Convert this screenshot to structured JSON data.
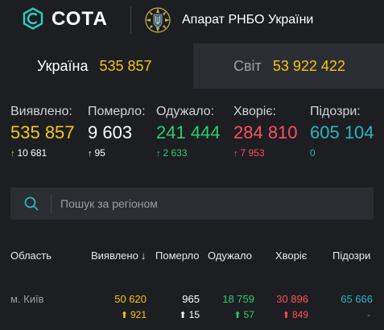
{
  "header": {
    "logo_text": "СОТА",
    "org_name": "Апарат РНБО України",
    "logo_icon": "sota-hex-logo-icon",
    "emblem_icon": "ukraine-coat-of-arms-icon"
  },
  "tabs": [
    {
      "label": "Україна",
      "value": "535 857",
      "active": true
    },
    {
      "label": "Світ",
      "value": "53 922 422",
      "active": false
    }
  ],
  "stats": [
    {
      "label": "Виявлено:",
      "value": "535 857",
      "delta": "10 681",
      "arrow": "↑",
      "color": "#f5c518"
    },
    {
      "label": "Померло:",
      "value": "9 603",
      "delta": "95",
      "arrow": "↑",
      "color": "#ffffff"
    },
    {
      "label": "Одужало:",
      "value": "241 444",
      "delta": "2 633",
      "arrow": "↑",
      "color": "#2ecc71"
    },
    {
      "label": "Хворіє:",
      "value": "284 810",
      "delta": "7 953",
      "arrow": "↑",
      "color": "#ff4d5e"
    },
    {
      "label": "Підозри:",
      "value": "605 104",
      "delta": "0",
      "arrow": "",
      "color": "#2bb5c0"
    }
  ],
  "search": {
    "placeholder": "Пошук за регіоном",
    "value": ""
  },
  "table": {
    "headers": {
      "region": "Область",
      "confirmed": "Виявлено",
      "sort_arrow": "↓",
      "deaths": "Померло",
      "recovered": "Одужало",
      "sick": "Хворіє",
      "suspected": "Підозри"
    },
    "rows": [
      {
        "region": "м. Київ",
        "confirmed": "50 620",
        "confirmed_delta": "921",
        "deaths": "965",
        "deaths_delta": "15",
        "recovered": "18 759",
        "recovered_delta": "57",
        "sick": "30 896",
        "sick_delta": "849",
        "suspected": "65 666",
        "suspected_delta": "-"
      }
    ]
  }
}
